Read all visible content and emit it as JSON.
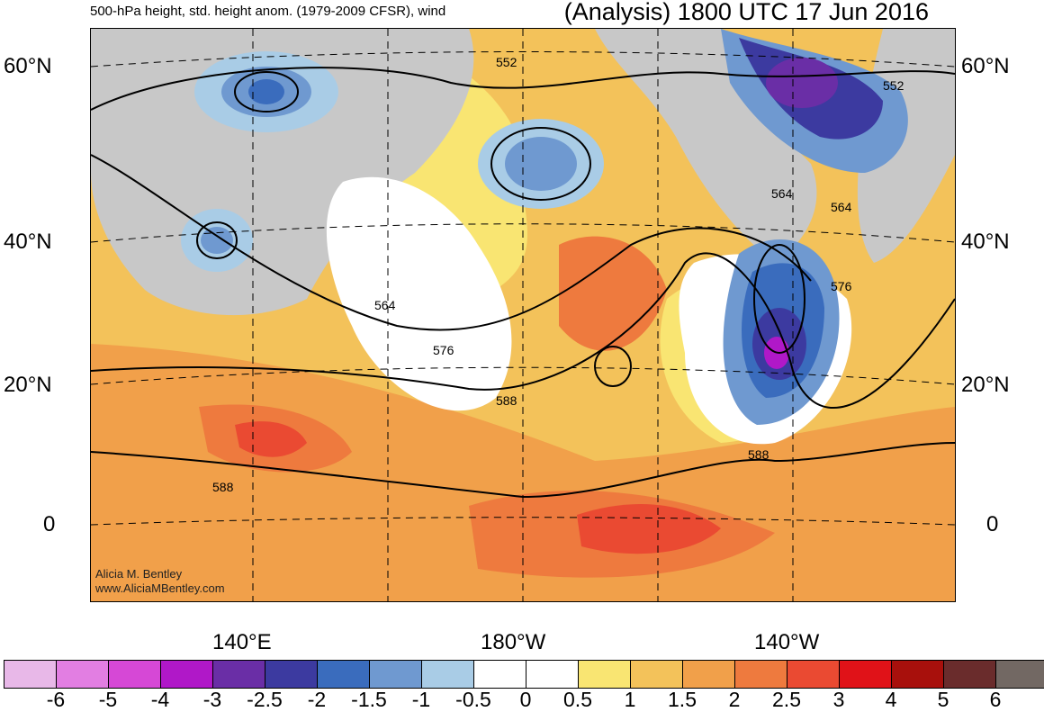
{
  "header": {
    "title_left": "500-hPa height, std. height anom. (1979-2009 CFSR), wind",
    "title_right": "(Analysis) 1800 UTC 17 Jun 2016"
  },
  "axes": {
    "lat_labels_left": [
      "60°N",
      "40°N",
      "20°N",
      "0"
    ],
    "lat_labels_right": [
      "60°N",
      "40°N",
      "20°N",
      "0"
    ],
    "lon_labels": [
      "140°E",
      "180°W",
      "140°W"
    ]
  },
  "contour_labels": [
    "552",
    "552",
    "564",
    "564",
    "564",
    "576",
    "576",
    "588",
    "588",
    "588"
  ],
  "credit": {
    "line1": "Alicia M. Bentley",
    "line2": "www.AliciaMBentley.com"
  },
  "colorbar": {
    "colors": [
      "#e8b8e8",
      "#e27ee2",
      "#d648d6",
      "#b018c8",
      "#6a2ea6",
      "#3c3aa0",
      "#3a6cbd",
      "#6f99d0",
      "#a9cce6",
      "#ffffff",
      "#ffffff",
      "#f9e572",
      "#f3c25a",
      "#f1a04a",
      "#ee7a3e",
      "#ea4a32",
      "#e01218",
      "#a8100c",
      "#6a2c2c",
      "#726863"
    ],
    "tick_labels": [
      "-6",
      "-5",
      "-4",
      "-3",
      "-2.5",
      "-2",
      "-1.5",
      "-1",
      "-0.5",
      "0",
      "0.5",
      "1",
      "1.5",
      "2",
      "2.5",
      "3",
      "4",
      "5",
      "6"
    ]
  }
}
